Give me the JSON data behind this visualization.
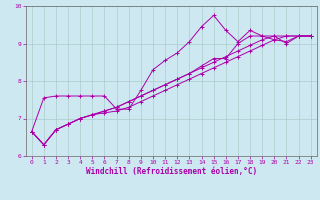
{
  "xlabel": "Windchill (Refroidissement éolien,°C)",
  "ylabel": "",
  "bg_color": "#cde8f0",
  "line_color": "#aa00aa",
  "grid_color": "#aacccc",
  "xlim": [
    -0.5,
    23.5
  ],
  "ylim": [
    6,
    10
  ],
  "yticks": [
    6,
    7,
    8,
    9,
    10
  ],
  "xticks": [
    0,
    1,
    2,
    3,
    4,
    5,
    6,
    7,
    8,
    9,
    10,
    11,
    12,
    13,
    14,
    15,
    16,
    17,
    18,
    19,
    20,
    21,
    22,
    23
  ],
  "series": [
    [
      6.65,
      7.55,
      7.6,
      7.6,
      7.6,
      7.6,
      7.6,
      7.25,
      7.25,
      7.75,
      8.3,
      8.55,
      8.75,
      9.05,
      9.45,
      9.75,
      9.35,
      9.05,
      9.35,
      9.2,
      9.1,
      9.05,
      9.2,
      9.2
    ],
    [
      6.65,
      6.3,
      6.7,
      6.85,
      7.0,
      7.1,
      7.15,
      7.2,
      7.3,
      7.45,
      7.6,
      7.75,
      7.9,
      8.05,
      8.2,
      8.35,
      8.5,
      8.65,
      8.8,
      8.95,
      9.1,
      9.2,
      9.2,
      9.2
    ],
    [
      6.65,
      6.3,
      6.7,
      6.85,
      7.0,
      7.1,
      7.2,
      7.3,
      7.45,
      7.6,
      7.75,
      7.9,
      8.05,
      8.2,
      8.35,
      8.5,
      8.65,
      8.8,
      8.95,
      9.1,
      9.2,
      9.2,
      9.2,
      9.2
    ],
    [
      6.65,
      6.3,
      6.7,
      6.85,
      7.0,
      7.1,
      7.2,
      7.3,
      7.45,
      7.6,
      7.75,
      7.9,
      8.05,
      8.2,
      8.4,
      8.6,
      8.6,
      9.0,
      9.2,
      9.2,
      9.2,
      9.0,
      9.2,
      9.2
    ]
  ],
  "tick_fontsize": 4.5,
  "xlabel_fontsize": 5.5,
  "spine_color": "#666666"
}
